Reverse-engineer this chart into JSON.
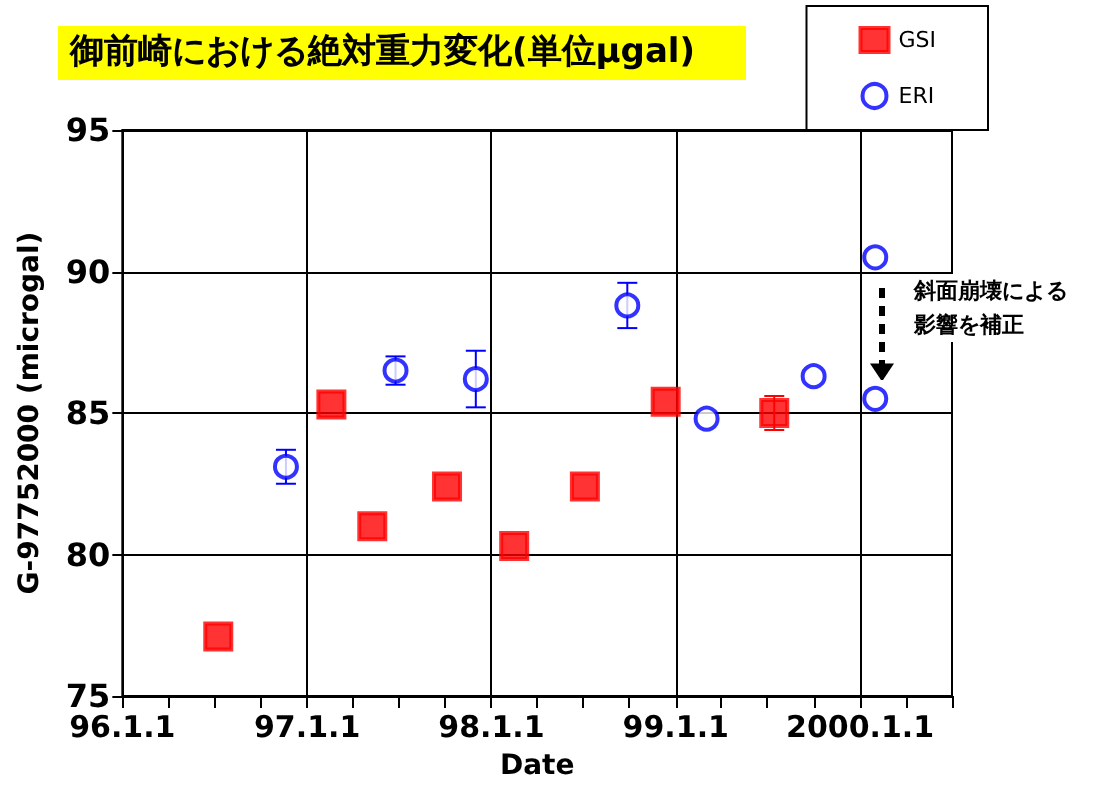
{
  "chart_data": {
    "type": "scatter",
    "title": "御前崎における絶対重力変化(単位μgal)",
    "xlabel": "Date",
    "ylabel": "G-97752000 (microgal)",
    "xlim": [
      "1996-01-01",
      "2000-07-01"
    ],
    "xticks": [
      {
        "value": "1996-01-01",
        "label": "96.1.1"
      },
      {
        "value": "1996-04-01",
        "label": null
      },
      {
        "value": "1996-07-01",
        "label": null
      },
      {
        "value": "1996-10-01",
        "label": null
      },
      {
        "value": "1997-01-01",
        "label": "97.1.1"
      },
      {
        "value": "1997-04-01",
        "label": null
      },
      {
        "value": "1997-07-01",
        "label": null
      },
      {
        "value": "1997-10-01",
        "label": null
      },
      {
        "value": "1998-01-01",
        "label": "98.1.1"
      },
      {
        "value": "1998-04-01",
        "label": null
      },
      {
        "value": "1998-07-01",
        "label": null
      },
      {
        "value": "1998-10-01",
        "label": null
      },
      {
        "value": "1999-01-01",
        "label": "99.1.1"
      },
      {
        "value": "1999-04-01",
        "label": null
      },
      {
        "value": "1999-07-01",
        "label": null
      },
      {
        "value": "1999-10-01",
        "label": null
      },
      {
        "value": "2000-01-01",
        "label": "2000.1.1"
      },
      {
        "value": "2000-04-01",
        "label": null
      },
      {
        "value": "2000-07-01",
        "label": null
      }
    ],
    "ylim": [
      75,
      95
    ],
    "yticks": [
      75,
      80,
      85,
      90,
      95
    ],
    "grid": true,
    "legend": "top right",
    "annotations": [
      "斜面崩壊による影響を補正"
    ],
    "series": [
      {
        "name": "GSI",
        "color": "#ff0000",
        "marker": "square",
        "x": [
          "1996-07-09",
          "1997-02-18",
          "1997-05-10",
          "1997-10-05",
          "1998-02-15",
          "1998-07-05",
          "1998-12-12",
          "1999-07-15"
        ],
        "values": [
          77.1,
          85.3,
          81.0,
          82.4,
          80.3,
          82.4,
          85.4,
          85.0
        ],
        "errors": [
          null,
          null,
          null,
          null,
          null,
          null,
          null,
          0.6
        ]
      },
      {
        "name": "ERI",
        "color": "#0000ff",
        "marker": "circle",
        "x": [
          "1996-11-20",
          "1997-06-25",
          "1997-12-01",
          "1998-09-27",
          "1999-03-03",
          "1999-10-01",
          "2000-01-31",
          "2000-01-31"
        ],
        "values": [
          83.1,
          86.5,
          86.2,
          88.8,
          84.8,
          86.3,
          90.5,
          85.5
        ],
        "errors": [
          0.6,
          0.5,
          1.0,
          0.8,
          null,
          null,
          null,
          null
        ]
      }
    ]
  }
}
